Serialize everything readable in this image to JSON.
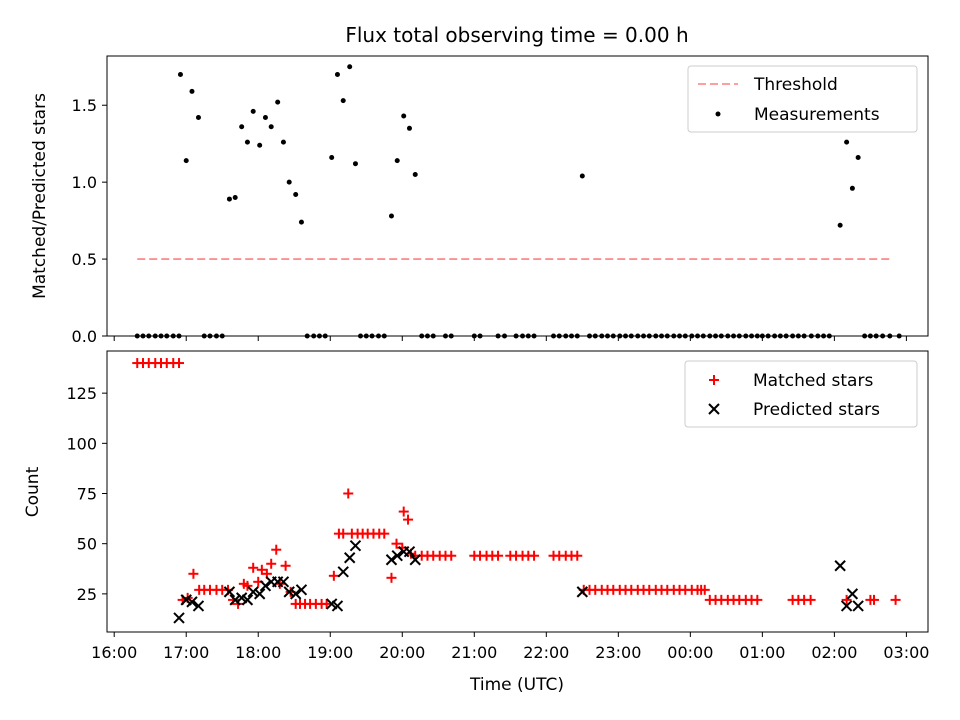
{
  "figure_title": "Flux total observing time = 0.00 h",
  "colors": {
    "threshold": "#ff7f7f",
    "measurement": "#000000",
    "matched": "#ff0000",
    "predicted": "#000000"
  },
  "chart_data": [
    {
      "type": "scatter",
      "title": "Flux total observing time = 0.00 h",
      "ylabel": "Matched/Predicted stars",
      "xlabel": "",
      "xlim": [
        15.9,
        27.3
      ],
      "ylim": [
        0,
        1.82
      ],
      "yticks": [
        0.0,
        0.5,
        1.0,
        1.5
      ],
      "ytick_labels": [
        "0.0",
        "0.5",
        "1.0",
        "1.5"
      ],
      "legend_position": "upper right",
      "legend": [
        "Threshold",
        "Measurements"
      ],
      "threshold": {
        "name": "Threshold",
        "value": 0.5,
        "x_range": [
          16.32,
          26.8
        ],
        "style": "dashed"
      },
      "series": [
        {
          "name": "Measurements",
          "x": [
            16.92,
            17.0,
            17.08,
            17.17,
            17.6,
            17.68,
            17.77,
            17.85,
            17.93,
            18.02,
            18.1,
            18.18,
            18.27,
            18.35,
            18.43,
            18.52,
            18.6,
            19.02,
            19.1,
            19.18,
            19.27,
            19.35,
            19.85,
            19.93,
            20.02,
            20.1,
            20.18,
            22.5,
            26.08,
            26.17,
            26.25,
            26.33,
            16.32,
            16.4,
            16.48,
            16.57,
            16.65,
            16.73,
            16.82,
            16.9,
            17.25,
            17.33,
            17.42,
            17.5,
            18.68,
            18.77,
            18.85,
            18.93,
            19.42,
            19.5,
            19.58,
            19.67,
            19.75,
            20.27,
            20.35,
            20.43,
            20.6,
            20.68,
            21.0,
            21.08,
            21.33,
            21.42,
            21.58,
            21.67,
            21.75,
            21.83,
            22.1,
            22.18,
            22.27,
            22.35,
            22.43,
            22.6,
            22.68,
            22.77,
            22.85,
            22.93,
            23.02,
            23.1,
            23.18,
            23.27,
            23.35,
            23.43,
            23.52,
            23.6,
            23.68,
            23.77,
            23.85,
            23.93,
            24.02,
            24.1,
            24.18,
            24.27,
            24.35,
            24.43,
            24.52,
            24.6,
            24.68,
            24.77,
            24.85,
            24.93,
            25.0,
            25.08,
            25.17,
            25.25,
            25.33,
            25.42,
            25.5,
            25.58,
            25.68,
            25.77,
            25.85,
            25.93,
            26.42,
            26.5,
            26.58,
            26.67,
            26.77,
            26.9
          ],
          "y": [
            1.7,
            1.14,
            1.59,
            1.42,
            0.89,
            0.9,
            1.36,
            1.26,
            1.46,
            1.24,
            1.42,
            1.36,
            1.52,
            1.26,
            1.0,
            0.92,
            0.74,
            1.16,
            1.7,
            1.53,
            1.75,
            1.12,
            0.78,
            1.14,
            1.43,
            1.35,
            1.05,
            1.04,
            0.72,
            1.26,
            0.96,
            1.16,
            0,
            0,
            0,
            0,
            0,
            0,
            0,
            0,
            0,
            0,
            0,
            0,
            0,
            0,
            0,
            0,
            0,
            0,
            0,
            0,
            0,
            0,
            0,
            0,
            0,
            0,
            0,
            0,
            0,
            0,
            0,
            0,
            0,
            0,
            0,
            0,
            0,
            0,
            0,
            0,
            0,
            0,
            0,
            0,
            0,
            0,
            0,
            0,
            0,
            0,
            0,
            0,
            0,
            0,
            0,
            0,
            0,
            0,
            0,
            0,
            0,
            0,
            0,
            0,
            0,
            0,
            0,
            0,
            0,
            0,
            0,
            0,
            0,
            0,
            0,
            0,
            0,
            0,
            0,
            0,
            0,
            0,
            0,
            0,
            0,
            0
          ]
        }
      ]
    },
    {
      "type": "scatter",
      "title": "",
      "ylabel": "Count",
      "xlabel": "Time (UTC)",
      "xlim": [
        15.9,
        27.3
      ],
      "ylim": [
        6,
        146
      ],
      "yticks": [
        25,
        50,
        75,
        100,
        125
      ],
      "ytick_labels": [
        "25",
        "50",
        "75",
        "100",
        "125"
      ],
      "xticks": [
        16,
        17,
        18,
        19,
        20,
        21,
        22,
        23,
        24,
        25,
        26,
        27
      ],
      "xtick_labels": [
        "16:00",
        "17:00",
        "18:00",
        "19:00",
        "20:00",
        "21:00",
        "22:00",
        "23:00",
        "00:00",
        "01:00",
        "02:00",
        "03:00"
      ],
      "legend_position": "upper right",
      "legend": [
        "Matched stars",
        "Predicted stars"
      ],
      "series": [
        {
          "name": "Matched stars",
          "x": [
            16.32,
            16.4,
            16.48,
            16.57,
            16.65,
            16.73,
            16.82,
            16.9,
            16.95,
            17.02,
            17.1,
            17.18,
            17.25,
            17.33,
            17.42,
            17.5,
            17.58,
            17.65,
            17.72,
            17.8,
            17.85,
            17.93,
            18.0,
            18.05,
            18.12,
            18.18,
            18.25,
            18.3,
            18.38,
            18.45,
            18.52,
            18.58,
            18.65,
            18.72,
            18.8,
            18.88,
            18.95,
            19.05,
            19.12,
            19.18,
            19.25,
            19.3,
            19.38,
            19.45,
            19.52,
            19.6,
            19.68,
            19.75,
            19.85,
            19.92,
            20.0,
            20.02,
            20.08,
            20.12,
            20.18,
            20.27,
            20.35,
            20.43,
            20.52,
            20.6,
            20.68,
            21.0,
            21.08,
            21.17,
            21.25,
            21.33,
            21.5,
            21.58,
            21.67,
            21.75,
            21.83,
            22.1,
            22.18,
            22.27,
            22.35,
            22.43,
            22.52,
            22.6,
            22.68,
            22.77,
            22.85,
            22.93,
            23.02,
            23.1,
            23.18,
            23.27,
            23.35,
            23.43,
            23.52,
            23.6,
            23.68,
            23.77,
            23.85,
            23.93,
            24.02,
            24.1,
            24.15,
            24.2,
            24.27,
            24.35,
            24.43,
            24.52,
            24.6,
            24.68,
            24.77,
            24.85,
            24.93,
            25.42,
            25.5,
            25.58,
            25.67,
            26.17,
            26.5,
            26.55,
            26.85
          ],
          "y": [
            140,
            140,
            140,
            140,
            140,
            140,
            140,
            140,
            22,
            23,
            35,
            27,
            27,
            27,
            27,
            27,
            27,
            22,
            20,
            30,
            29,
            38,
            31,
            37,
            35,
            40,
            47,
            30,
            39,
            26,
            20,
            20,
            20,
            20,
            20,
            20,
            20,
            34,
            55,
            55,
            75,
            55,
            55,
            55,
            55,
            55,
            55,
            55,
            33,
            50,
            48,
            66,
            62,
            45,
            44,
            44,
            44,
            44,
            44,
            44,
            44,
            44,
            44,
            44,
            44,
            44,
            44,
            44,
            44,
            44,
            44,
            44,
            44,
            44,
            44,
            44,
            27,
            27,
            27,
            27,
            27,
            27,
            27,
            27,
            27,
            27,
            27,
            27,
            27,
            27,
            27,
            27,
            27,
            27,
            27,
            27,
            27,
            27,
            22,
            22,
            22,
            22,
            22,
            22,
            22,
            22,
            22,
            22,
            22,
            22,
            22,
            22,
            22,
            22,
            22
          ]
        },
        {
          "name": "Predicted stars",
          "x": [
            16.9,
            17.0,
            17.08,
            17.17,
            17.6,
            17.68,
            17.77,
            17.85,
            17.93,
            18.02,
            18.1,
            18.18,
            18.27,
            18.35,
            18.43,
            18.52,
            18.6,
            19.02,
            19.1,
            19.18,
            19.27,
            19.35,
            19.85,
            19.93,
            20.02,
            20.1,
            20.18,
            22.5,
            26.08,
            26.17,
            26.25,
            26.33
          ],
          "y": [
            13,
            22,
            21,
            19,
            26,
            22,
            23,
            22,
            26,
            25,
            29,
            31,
            31,
            31,
            26,
            25,
            27,
            20,
            19,
            36,
            43,
            49,
            42,
            44,
            46,
            46,
            42,
            26,
            39,
            19,
            25,
            19
          ]
        }
      ]
    }
  ]
}
